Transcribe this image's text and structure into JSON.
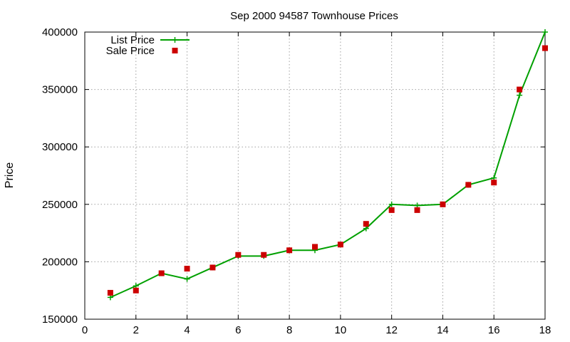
{
  "chart_data": {
    "type": "line",
    "title": "Sep 2000 94587 Townhouse Prices",
    "xlabel": "",
    "ylabel": "Price",
    "xlim": [
      0,
      18
    ],
    "ylim": [
      150000,
      400000
    ],
    "x_ticks": [
      0,
      2,
      4,
      6,
      8,
      10,
      12,
      14,
      16,
      18
    ],
    "y_ticks": [
      150000,
      200000,
      250000,
      300000,
      350000,
      400000
    ],
    "grid": true,
    "legend_position": "top-left",
    "series": [
      {
        "name": "List Price",
        "style": "line-points",
        "marker": "plus",
        "color": "#00a000",
        "x": [
          1,
          2,
          3,
          4,
          5,
          6,
          7,
          8,
          9,
          10,
          11,
          12,
          13,
          14,
          15,
          16,
          17,
          18
        ],
        "values": [
          169000,
          179000,
          190000,
          185000,
          195000,
          205000,
          205000,
          210000,
          210000,
          215000,
          229000,
          250000,
          249000,
          250000,
          267000,
          273000,
          345000,
          400000
        ]
      },
      {
        "name": "Sale Price",
        "style": "points",
        "marker": "square",
        "color": "#cc0000",
        "x": [
          1,
          2,
          3,
          4,
          5,
          6,
          7,
          8,
          9,
          10,
          11,
          12,
          13,
          14,
          15,
          16,
          17,
          18
        ],
        "values": [
          173000,
          175000,
          190000,
          194000,
          195000,
          206000,
          206000,
          210000,
          213000,
          215000,
          233000,
          245000,
          245000,
          250000,
          267000,
          269000,
          350000,
          386000
        ]
      }
    ]
  }
}
